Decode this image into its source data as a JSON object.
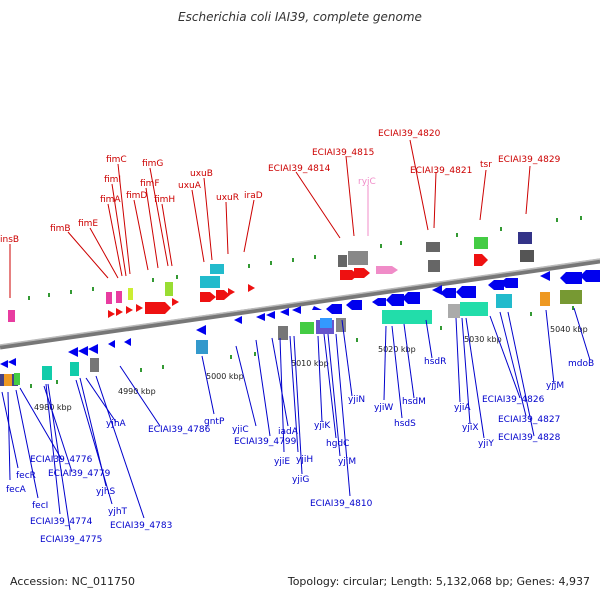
{
  "title": "Escherichia coli IAI39, complete genome",
  "footer": {
    "accession": "Accession: NC_011750",
    "summary": "Topology: circular; Length: 5,132,068 bp; Genes: 4,937"
  },
  "colors": {
    "forward_label": "#cc0000",
    "reverse_label": "#0000cc",
    "rna_label": "#f08cc8",
    "backbone": "#888888"
  },
  "kbp_labels": [
    "4980 kbp",
    "4990 kbp",
    "5000 kbp",
    "5010 kbp",
    "5020 kbp",
    "5030 kbp",
    "5040 kbp"
  ],
  "forward_genes": [
    "insB",
    "fimB",
    "fimE",
    "fimA",
    "fimI",
    "fimC",
    "fimD",
    "fimF",
    "fimG",
    "fimH",
    "uxuA",
    "uxuB",
    "uxuR",
    "iraD",
    "ECIAI39_4814",
    "ECIAI39_4815",
    "ryjC",
    "ECIAI39_4820",
    "ECIAI39_4821",
    "tsr",
    "ECIAI39_4829"
  ],
  "reverse_genes": [
    "fecR",
    "fecA",
    "fecI",
    "ECIAI39_4776",
    "ECIAI39_4779",
    "ECIAI39_4774",
    "ECIAI39_4775",
    "yjhA",
    "yjhS",
    "yjhT",
    "ECIAI39_4783",
    "ECIAI39_4786",
    "gntP",
    "yjiC",
    "ECIAI39_4799",
    "iadA",
    "yjiE",
    "yjiH",
    "yjiG",
    "yjiK",
    "hgdC",
    "yjiM",
    "ECIAI39_4810",
    "yjiN",
    "yjiW",
    "hsdS",
    "hsdM",
    "hsdR",
    "yjiA",
    "yjiX",
    "yjiY",
    "ECIAI39_4826",
    "ECIAI39_4827",
    "ECIAI39_4828",
    "yjjM",
    "mdoB"
  ]
}
